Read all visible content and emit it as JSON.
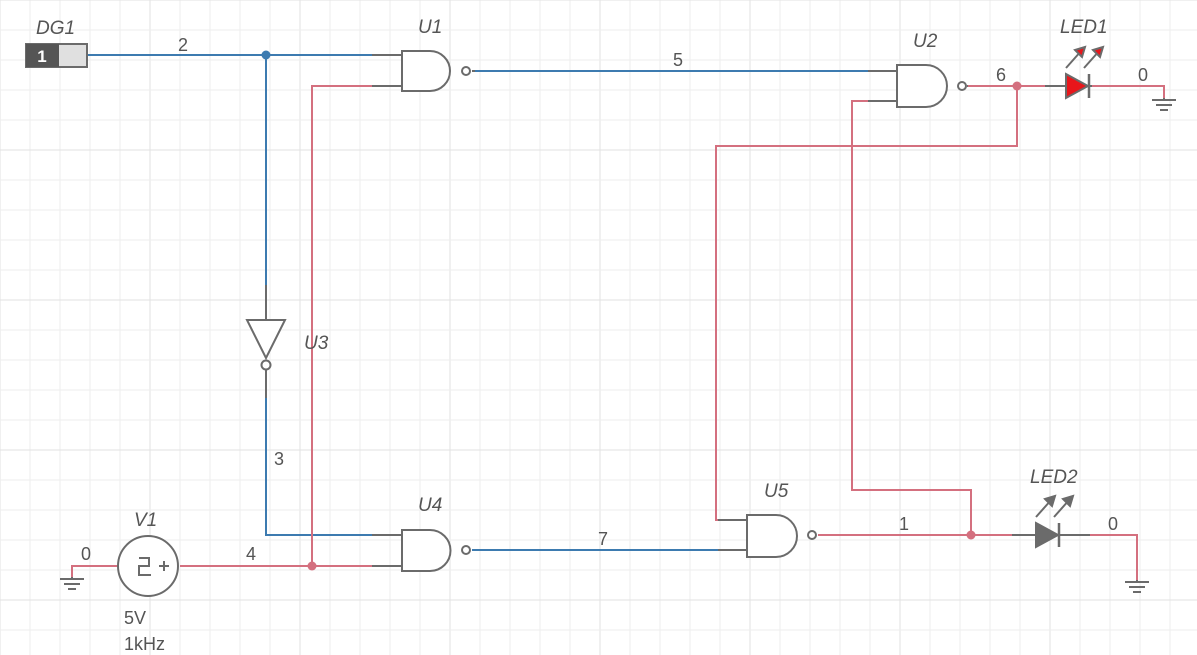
{
  "colors": {
    "wire_low": "#3d7bb0",
    "wire_high": "#d4707f",
    "component": "#6b6b6b",
    "led_on": "#e8161b",
    "led_off": "#6b6b6b",
    "grid": "#eeeeee"
  },
  "components": {
    "dg1": {
      "ref": "DG1",
      "value": "1"
    },
    "u1": {
      "ref": "U1"
    },
    "u2": {
      "ref": "U2"
    },
    "u3": {
      "ref": "U3"
    },
    "u4": {
      "ref": "U4"
    },
    "u5": {
      "ref": "U5"
    },
    "led1": {
      "ref": "LED1",
      "icon": "led-on-icon"
    },
    "led2": {
      "ref": "LED2",
      "icon": "led-off-icon"
    },
    "v1": {
      "ref": "V1",
      "voltage": "5V",
      "frequency": "1kHz",
      "icon": "clock-source-icon"
    }
  },
  "nets": {
    "n2": "2",
    "n5": "5",
    "n6": "6",
    "n0_led1": "0",
    "n3": "3",
    "n4": "4",
    "n0_v1": "0",
    "n7": "7",
    "n1": "1",
    "n0_led2": "0"
  }
}
